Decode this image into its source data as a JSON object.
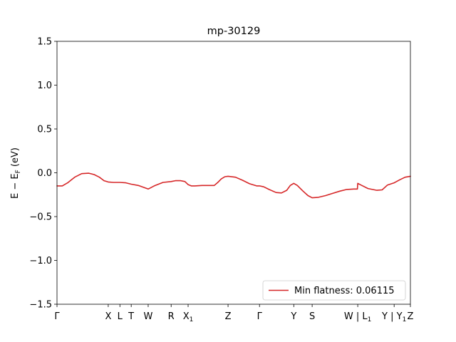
{
  "chart_data": {
    "type": "line",
    "title": "mp-30129",
    "ylabel": "E − E_F (eV)",
    "xlabel": "",
    "ylim": [
      -1.5,
      1.5
    ],
    "yticks": [
      1.5,
      1.0,
      0.5,
      0.0,
      -0.5,
      -1.0,
      -1.5
    ],
    "ytick_labels": [
      "1.5",
      "1.0",
      "0.5",
      "0.0",
      "−0.5",
      "−1.0",
      "−1.5"
    ],
    "xlim": [
      0,
      100
    ],
    "xticks": [
      {
        "x": 0,
        "label": "Γ"
      },
      {
        "x": 14.5,
        "label": "X"
      },
      {
        "x": 17.8,
        "label": "L"
      },
      {
        "x": 21.0,
        "label": "T"
      },
      {
        "x": 25.8,
        "label": "W"
      },
      {
        "x": 32.3,
        "label": "R"
      },
      {
        "x": 37.1,
        "label": "X1"
      },
      {
        "x": 48.4,
        "label": "Z"
      },
      {
        "x": 57.3,
        "label": "Γ"
      },
      {
        "x": 67.0,
        "label": "Y"
      },
      {
        "x": 72.2,
        "label": "S"
      },
      {
        "x": 85.1,
        "label": "W | L1"
      },
      {
        "x": 95.4,
        "label": "Y | Y1"
      },
      {
        "x": 100,
        "label": "Z"
      }
    ],
    "grid": false,
    "legend": {
      "placement": "lower-right",
      "entries": [
        "Min flatness: 0.06115"
      ]
    },
    "series": [
      {
        "name": "Min flatness: 0.06115",
        "color": "#d62728",
        "x": [
          0,
          1.5,
          3.0,
          5.0,
          7.0,
          9.0,
          10.5,
          12.0,
          13.3,
          14.5,
          16.0,
          17.8,
          19.5,
          21.0,
          23.0,
          25.8,
          27.5,
          30.0,
          32.3,
          33.5,
          35.0,
          36.2,
          37.1,
          38.0,
          39.0,
          41.0,
          44.5,
          45.5,
          46.5,
          47.5,
          48.4,
          50.5,
          52.5,
          54.5,
          56.5,
          57.3,
          58.5,
          60.0,
          62.0,
          63.5,
          65.0,
          66.0,
          67.0,
          68.0,
          69.5,
          71.0,
          72.2,
          74.0,
          76.0,
          78.0,
          80.0,
          82.0,
          84.0,
          85.0,
          85.1,
          86.0,
          88.0,
          90.5,
          92.0,
          93.5,
          95.0,
          95.4,
          97.0,
          98.5,
          100
        ],
        "y": [
          -0.15,
          -0.15,
          -0.115,
          -0.05,
          -0.01,
          -0.005,
          -0.02,
          -0.05,
          -0.09,
          -0.105,
          -0.11,
          -0.11,
          -0.115,
          -0.13,
          -0.145,
          -0.185,
          -0.15,
          -0.11,
          -0.1,
          -0.09,
          -0.09,
          -0.1,
          -0.135,
          -0.15,
          -0.15,
          -0.145,
          -0.145,
          -0.11,
          -0.07,
          -0.045,
          -0.04,
          -0.05,
          -0.085,
          -0.125,
          -0.15,
          -0.15,
          -0.16,
          -0.19,
          -0.225,
          -0.23,
          -0.2,
          -0.145,
          -0.12,
          -0.145,
          -0.205,
          -0.26,
          -0.285,
          -0.28,
          -0.26,
          -0.235,
          -0.21,
          -0.19,
          -0.185,
          -0.185,
          -0.12,
          -0.14,
          -0.18,
          -0.2,
          -0.195,
          -0.14,
          -0.12,
          -0.115,
          -0.08,
          -0.05,
          -0.04
        ]
      }
    ]
  }
}
